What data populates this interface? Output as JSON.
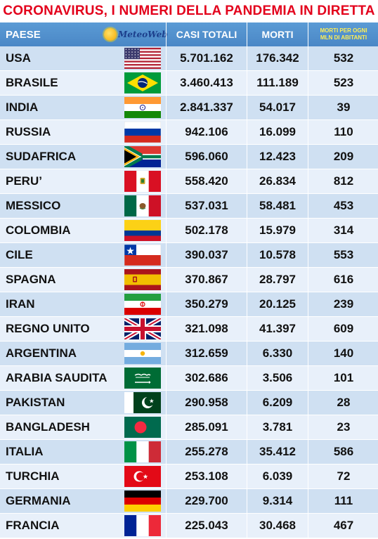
{
  "title": "CORONAVIRUS, I NUMERI DELLA PANDEMIA IN DIRETTA",
  "logo": {
    "text": "MeteoWeb",
    "icon": "sun-icon"
  },
  "headers": {
    "paese": "PAESE",
    "casi": "CASI TOTALI",
    "morti": "MORTI",
    "mln_line1": "MORTI PER OGNI",
    "mln_line2": "MLN DI ABITANTI"
  },
  "colors": {
    "title": "#e3001b",
    "header_bg": "#5b9bd5",
    "row_odd": "#cfe0f2",
    "row_even": "#e8f0fa"
  },
  "rows": [
    {
      "country": "USA",
      "flag": "usa",
      "cases": "5.701.162",
      "deaths": "176.342",
      "per_mln": "532"
    },
    {
      "country": "BRASILE",
      "flag": "brazil",
      "cases": "3.460.413",
      "deaths": "111.189",
      "per_mln": "523"
    },
    {
      "country": "INDIA",
      "flag": "india",
      "cases": "2.841.337",
      "deaths": "54.017",
      "per_mln": "39"
    },
    {
      "country": "RUSSIA",
      "flag": "russia",
      "cases": "942.106",
      "deaths": "16.099",
      "per_mln": "110"
    },
    {
      "country": "SUDAFRICA",
      "flag": "south-africa",
      "cases": "596.060",
      "deaths": "12.423",
      "per_mln": "209"
    },
    {
      "country": "PERU’",
      "flag": "peru",
      "cases": "558.420",
      "deaths": "26.834",
      "per_mln": "812"
    },
    {
      "country": "MESSICO",
      "flag": "mexico",
      "cases": "537.031",
      "deaths": "58.481",
      "per_mln": "453"
    },
    {
      "country": "COLOMBIA",
      "flag": "colombia",
      "cases": "502.178",
      "deaths": "15.979",
      "per_mln": "314"
    },
    {
      "country": "CILE",
      "flag": "chile",
      "cases": "390.037",
      "deaths": "10.578",
      "per_mln": "553"
    },
    {
      "country": "SPAGNA",
      "flag": "spain",
      "cases": "370.867",
      "deaths": "28.797",
      "per_mln": "616"
    },
    {
      "country": "IRAN",
      "flag": "iran",
      "cases": "350.279",
      "deaths": "20.125",
      "per_mln": "239"
    },
    {
      "country": "REGNO UNITO",
      "flag": "uk",
      "cases": "321.098",
      "deaths": "41.397",
      "per_mln": "609"
    },
    {
      "country": "ARGENTINA",
      "flag": "argentina",
      "cases": "312.659",
      "deaths": "6.330",
      "per_mln": "140"
    },
    {
      "country": "ARABIA SAUDITA",
      "flag": "saudi-arabia",
      "cases": "302.686",
      "deaths": "3.506",
      "per_mln": "101"
    },
    {
      "country": "PAKISTAN",
      "flag": "pakistan",
      "cases": "290.958",
      "deaths": "6.209",
      "per_mln": "28"
    },
    {
      "country": "BANGLADESH",
      "flag": "bangladesh",
      "cases": "285.091",
      "deaths": "3.781",
      "per_mln": "23"
    },
    {
      "country": "ITALIA",
      "flag": "italy",
      "cases": "255.278",
      "deaths": "35.412",
      "per_mln": "586"
    },
    {
      "country": "TURCHIA",
      "flag": "turkey",
      "cases": "253.108",
      "deaths": "6.039",
      "per_mln": "72"
    },
    {
      "country": "GERMANIA",
      "flag": "germany",
      "cases": "229.700",
      "deaths": "9.314",
      "per_mln": "111"
    },
    {
      "country": "FRANCIA",
      "flag": "france",
      "cases": "225.043",
      "deaths": "30.468",
      "per_mln": "467"
    }
  ]
}
